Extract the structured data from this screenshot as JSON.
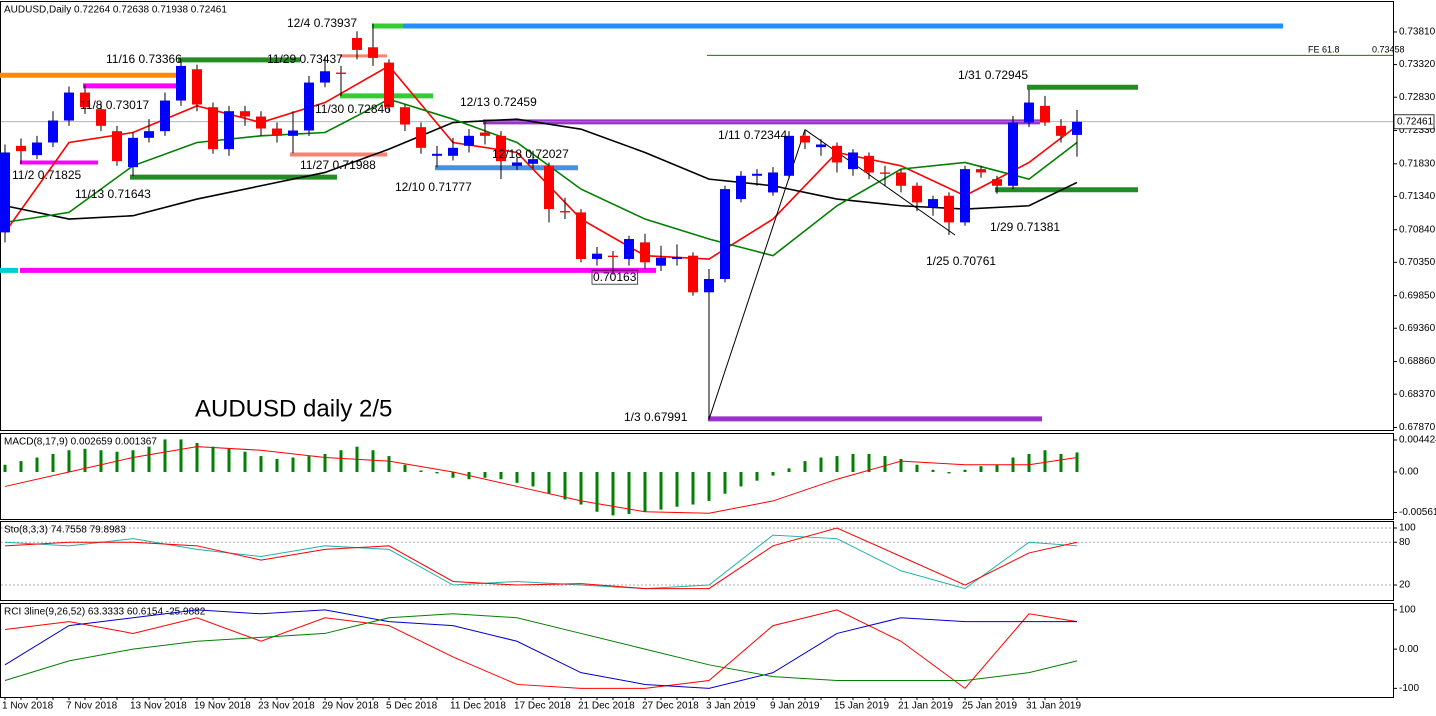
{
  "chart_data": [
    {
      "type": "candlestick",
      "title": "AUDUSD,Daily  0.72264 0.72638 0.71938 0.72461",
      "categories": [
        "1 Nov 2018",
        null,
        null,
        null,
        "7 Nov 2018",
        null,
        null,
        null,
        "13 Nov 2018",
        null,
        null,
        null,
        "19 Nov 2018",
        null,
        null,
        null,
        "23 Nov 2018",
        null,
        null,
        null,
        "29 Nov 2018",
        null,
        null,
        null,
        "5 Dec 2018",
        null,
        null,
        null,
        "11 Dec 2018",
        null,
        null,
        null,
        "17 Dec 2018",
        null,
        null,
        null,
        "21 Dec 2018",
        null,
        null,
        null,
        "27 Dec 2018",
        null,
        null,
        null,
        "3 Jan 2019",
        null,
        null,
        null,
        "9 Jan 2019",
        null,
        null,
        null,
        "15 Jan 2019",
        null,
        null,
        null,
        "21 Jan 2019",
        null,
        null,
        null,
        "25 Jan 2019",
        null,
        null,
        null,
        "31 Jan 2019",
        null,
        null,
        null
      ],
      "open": [
        0.708,
        0.721,
        0.7196,
        0.7215,
        0.7248,
        0.729,
        0.7265,
        0.7232,
        0.7178,
        0.7222,
        0.7232,
        0.7278,
        0.7325,
        0.7268,
        0.7205,
        0.7262,
        0.7254,
        0.7236,
        0.7225,
        0.7233,
        0.7305,
        0.732,
        0.7372,
        0.7358,
        0.7335,
        0.7268,
        0.7238,
        0.7195,
        0.7195,
        0.721,
        0.723,
        0.7225,
        0.718,
        0.7183,
        0.718,
        0.7112,
        0.711,
        0.704,
        0.7045,
        0.704,
        0.7065,
        0.703,
        0.704,
        0.7045,
        0.699,
        0.701,
        0.713,
        0.7165,
        0.714,
        0.7165,
        0.7225,
        0.7208,
        0.721,
        0.7175,
        0.7195,
        0.717,
        0.717,
        0.715,
        0.7118,
        0.7135,
        0.7095,
        0.7175,
        0.716,
        0.715,
        0.7245,
        0.727,
        0.724,
        0.72264
      ],
      "high": [
        0.7212,
        0.7221,
        0.7225,
        0.7262,
        0.7299,
        0.73017,
        0.7275,
        0.724,
        0.723,
        0.725,
        0.729,
        0.73366,
        0.7332,
        0.7275,
        0.727,
        0.727,
        0.7262,
        0.7245,
        0.7262,
        0.7315,
        0.73437,
        0.733,
        0.7382,
        0.73937,
        0.734,
        0.7272,
        0.7245,
        0.721,
        0.7222,
        0.7235,
        0.72459,
        0.7232,
        0.7192,
        0.72027,
        0.7185,
        0.7132,
        0.7115,
        0.7058,
        0.7052,
        0.7075,
        0.7078,
        0.706,
        0.7062,
        0.705,
        0.7025,
        0.715,
        0.7172,
        0.7175,
        0.7178,
        0.7232,
        0.72344,
        0.722,
        0.7215,
        0.7205,
        0.72,
        0.718,
        0.7175,
        0.7155,
        0.7135,
        0.714,
        0.718,
        0.718,
        0.7165,
        0.7255,
        0.72945,
        0.7285,
        0.725,
        0.72638
      ],
      "low": [
        0.7065,
        0.71825,
        0.719,
        0.7208,
        0.724,
        0.7258,
        0.7232,
        0.718,
        0.71643,
        0.7215,
        0.7225,
        0.727,
        0.7262,
        0.7198,
        0.7195,
        0.724,
        0.7225,
        0.7215,
        0.71988,
        0.7225,
        0.7298,
        0.72846,
        0.734,
        0.733,
        0.7262,
        0.7232,
        0.7198,
        0.71777,
        0.7188,
        0.72,
        0.7212,
        0.716,
        0.7174,
        0.7176,
        0.7095,
        0.71,
        0.7035,
        0.703,
        0.70163,
        0.703,
        0.7025,
        0.7022,
        0.703,
        0.6985,
        0.67991,
        0.7005,
        0.7125,
        0.715,
        0.7135,
        0.716,
        0.7205,
        0.7195,
        0.717,
        0.7165,
        0.716,
        0.715,
        0.714,
        0.7112,
        0.7105,
        0.70761,
        0.709,
        0.7162,
        0.71381,
        0.7145,
        0.7238,
        0.724,
        0.7215,
        0.71938
      ],
      "close": [
        0.72,
        0.7202,
        0.7215,
        0.7248,
        0.729,
        0.7268,
        0.724,
        0.7187,
        0.7222,
        0.7232,
        0.7278,
        0.733,
        0.7272,
        0.7205,
        0.7262,
        0.7254,
        0.7236,
        0.7225,
        0.7233,
        0.7305,
        0.7322,
        0.7318,
        0.7354,
        0.7342,
        0.7268,
        0.7242,
        0.7207,
        0.7198,
        0.7207,
        0.7225,
        0.7225,
        0.7187,
        0.7185,
        0.719,
        0.7115,
        0.711,
        0.704,
        0.7048,
        0.7043,
        0.707,
        0.7035,
        0.7042,
        0.7043,
        0.699,
        0.701,
        0.7145,
        0.7165,
        0.7168,
        0.717,
        0.7225,
        0.7215,
        0.7212,
        0.7185,
        0.72,
        0.717,
        0.7168,
        0.715,
        0.7125,
        0.713,
        0.7095,
        0.7175,
        0.717,
        0.715,
        0.7245,
        0.7275,
        0.7245,
        0.7225,
        0.72461
      ],
      "up_color": "#0000ff",
      "down_color": "#ff0000",
      "x": [
        0,
        4,
        8,
        12,
        16,
        20,
        24,
        28,
        32,
        36,
        40,
        44,
        48,
        52,
        56,
        60,
        64,
        67
      ],
      "series": [
        {
          "color": "#ff0000",
          "values": [
            0.708,
            0.7215,
            0.723,
            0.727,
            0.7245,
            0.7275,
            0.733,
            0.7215,
            0.72,
            0.71,
            0.7045,
            0.704,
            0.71,
            0.72,
            0.718,
            0.7135,
            0.7185,
            0.724
          ]
        },
        {
          "color": "#000000",
          "values": [
            0.712,
            0.71,
            0.7105,
            0.713,
            0.715,
            0.717,
            0.7205,
            0.7245,
            0.725,
            0.7235,
            0.72,
            0.716,
            0.715,
            0.713,
            0.712,
            0.7115,
            0.712,
            0.7155
          ]
        },
        {
          "color": "#008000",
          "values": [
            0.7095,
            0.711,
            0.718,
            0.7215,
            0.7225,
            0.723,
            0.728,
            0.725,
            0.7215,
            0.7145,
            0.71,
            0.707,
            0.7045,
            0.712,
            0.7175,
            0.7185,
            0.716,
            0.7215
          ]
        }
      ],
      "levels": [
        {
          "color": "#1e90ff",
          "value": 0.739
        },
        {
          "color": "#32cd32",
          "value": 0.739
        },
        {
          "color": "#ff8c00",
          "value": 0.7316
        },
        {
          "color": "#ff00ff",
          "value": 0.73
        },
        {
          "color": "#228b22",
          "value": 0.7339
        },
        {
          "color": "#32cd32",
          "value": 0.7285
        },
        {
          "color": "#fa8072",
          "value": 0.7345
        },
        {
          "color": "#fa8072",
          "value": 0.7197
        },
        {
          "color": "#ff00ff",
          "value": 0.7185
        },
        {
          "color": "#228b22",
          "value": 0.7163
        },
        {
          "color": "#4a90e2",
          "value": 0.7177
        },
        {
          "color": "#9932cc",
          "value": 0.7246
        },
        {
          "color": "#ff00ff",
          "value": 0.7023
        },
        {
          "color": "#00ced1",
          "value": 0.7023
        },
        {
          "color": "#9932cc",
          "value": 0.68
        },
        {
          "color": "#228b22",
          "value": 0.7298
        },
        {
          "color": "#228b22",
          "value": 0.7144
        },
        {
          "color": "#008000",
          "value": 0.73458
        }
      ],
      "last_price": {
        "value": 0.72461,
        "label": "0.72461"
      },
      "annotations": [
        "12/4 0.73937",
        "11/16 0.73366",
        "11/29 0.73437",
        "11/8 0.73017",
        "11/30 0.72846",
        "12/13 0.72459",
        "11/2 0.71825",
        "11/27 0.71988",
        "12/18 0.72027",
        "11/13 0.71643",
        "12/10 0.71777",
        "0.70163",
        "1/3 0.67991",
        "1/11 0.72344",
        "1/31 0.72945",
        "1/29 0.71381",
        "1/25 0.70761",
        "FE 61.8",
        "0.73458",
        "AUDUSD daily 2/5"
      ],
      "ylim": [
        0.67832,
        0.7426
      ],
      "yticks": [
        {
          "value": 0.7381,
          "label": "0.73810"
        },
        {
          "value": 0.7332,
          "label": "0.73320"
        },
        {
          "value": 0.7283,
          "label": "0.72830"
        },
        {
          "value": 0.7233,
          "label": "0.72330"
        },
        {
          "value": 0.7183,
          "label": "0.71830"
        },
        {
          "value": 0.7134,
          "label": "0.71340"
        },
        {
          "value": 0.7084,
          "label": "0.70840"
        },
        {
          "value": 0.7035,
          "label": "0.70350"
        },
        {
          "value": 0.6985,
          "label": "0.69850"
        },
        {
          "value": 0.6936,
          "label": "0.69360"
        },
        {
          "value": 0.6886,
          "label": "0.68860"
        },
        {
          "value": 0.6837,
          "label": "0.68370"
        },
        {
          "value": 0.6787,
          "label": "0.67870"
        }
      ]
    },
    {
      "type": "macd",
      "title": "MACD(8,17,9) 0.002659 0.001367",
      "histogram_color": "#008000",
      "histogram": [
        0.001,
        0.0015,
        0.002,
        0.0025,
        0.003,
        0.0032,
        0.003,
        0.0028,
        0.003,
        0.0035,
        0.0045,
        0.0045,
        0.004,
        0.0035,
        0.0032,
        0.0028,
        0.0022,
        0.0018,
        0.002,
        0.0022,
        0.0025,
        0.003,
        0.0035,
        0.003,
        0.0022,
        0.001,
        0.0002,
        -0.0002,
        -0.0008,
        -0.001,
        -0.0008,
        -0.001,
        -0.0015,
        -0.002,
        -0.003,
        -0.0038,
        -0.0045,
        -0.0055,
        -0.006,
        -0.0058,
        -0.0055,
        -0.0052,
        -0.0048,
        -0.0045,
        -0.004,
        -0.003,
        -0.002,
        -0.0012,
        -0.0005,
        0.0005,
        0.0015,
        0.002,
        0.0022,
        0.0025,
        0.0025,
        0.0022,
        0.0018,
        0.001,
        0.0003,
        -0.0002,
        0.0003,
        0.0008,
        0.001,
        0.002,
        0.0025,
        0.003,
        0.0025,
        0.0027
      ],
      "x": [
        0,
        4,
        8,
        12,
        16,
        20,
        24,
        28,
        32,
        36,
        40,
        44,
        48,
        52,
        56,
        60,
        64,
        67
      ],
      "series": [
        {
          "color": "#ff0000",
          "values": [
            -0.002,
            0.0,
            0.002,
            0.0035,
            0.003,
            0.002,
            0.0015,
            0.0,
            -0.002,
            -0.004,
            -0.0055,
            -0.0057,
            -0.004,
            -0.001,
            0.0015,
            0.001,
            0.001,
            0.002
          ]
        }
      ],
      "ylim": [
        -0.0065,
        0.00525
      ],
      "yticks": [
        0.004424,
        {
          "value": 0,
          "label": "0.00"
        },
        -0.005611
      ]
    },
    {
      "type": "line",
      "title": "Sto(8,3,3) 74.7558 79.8983",
      "grid": true,
      "x": [
        0,
        4,
        8,
        12,
        16,
        20,
        24,
        28,
        32,
        36,
        40,
        44,
        48,
        52,
        56,
        60,
        64,
        67
      ],
      "series": [
        {
          "color": "#20b2aa",
          "values": [
            80,
            75,
            85,
            70,
            60,
            75,
            70,
            20,
            25,
            20,
            15,
            20,
            90,
            85,
            40,
            15,
            80,
            75
          ]
        },
        {
          "color": "#ff0000",
          "values": [
            75,
            80,
            80,
            75,
            55,
            70,
            75,
            25,
            20,
            22,
            15,
            15,
            75,
            100,
            60,
            20,
            65,
            80
          ]
        }
      ],
      "ylim": [
        -1,
        108.4
      ],
      "yticks": [
        100,
        80,
        20
      ]
    },
    {
      "type": "line",
      "title": "RCI 3line(9,26,52) 63.3333 60.6154 -25.9882",
      "x": [
        0,
        4,
        8,
        12,
        16,
        20,
        24,
        28,
        32,
        36,
        40,
        44,
        48,
        52,
        56,
        60,
        64,
        67
      ],
      "series": [
        {
          "color": "#ff0000",
          "values": [
            50,
            70,
            40,
            80,
            20,
            80,
            60,
            -20,
            -90,
            -100,
            -100,
            -80,
            60,
            100,
            20,
            -100,
            90,
            70
          ]
        },
        {
          "color": "#0000cd",
          "values": [
            -40,
            60,
            80,
            100,
            90,
            100,
            70,
            60,
            20,
            -60,
            -90,
            -100,
            -60,
            40,
            80,
            70,
            70,
            70
          ]
        },
        {
          "color": "#008000",
          "values": [
            -80,
            -30,
            0,
            20,
            30,
            40,
            80,
            90,
            80,
            40,
            0,
            -40,
            -70,
            -80,
            -80,
            -80,
            -60,
            -30
          ]
        }
      ],
      "ylim": [
        -122,
        115
      ],
      "yticks": [
        100,
        {
          "value": 0,
          "label": "0.00"
        },
        -100
      ]
    }
  ]
}
